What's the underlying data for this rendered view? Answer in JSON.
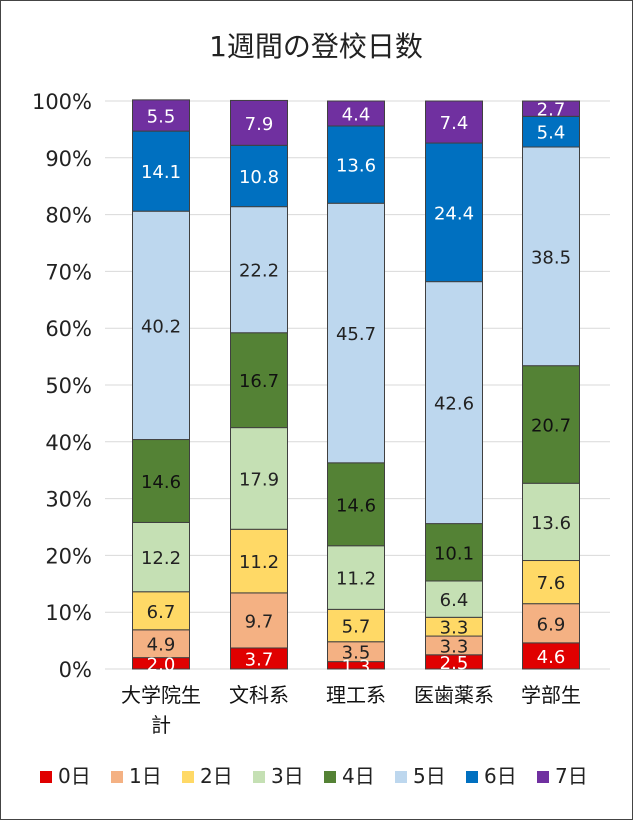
{
  "chart_data": {
    "type": "bar",
    "stacked": true,
    "percent": true,
    "title": "1週間の登校日数",
    "categories": [
      "大学院生計",
      "文科系",
      "理工系",
      "医歯薬系",
      "学部生"
    ],
    "category_lines": [
      [
        "大学院生",
        "計"
      ],
      [
        "文科系"
      ],
      [
        "理工系"
      ],
      [
        "医歯薬系"
      ],
      [
        "学部生"
      ]
    ],
    "ylim": [
      0,
      100
    ],
    "yticks": [
      0,
      10,
      20,
      30,
      40,
      50,
      60,
      70,
      80,
      90,
      100
    ],
    "ytick_labels": [
      "0%",
      "10%",
      "20%",
      "30%",
      "40%",
      "50%",
      "60%",
      "70%",
      "80%",
      "90%",
      "100%"
    ],
    "grid": true,
    "legend_position": "bottom",
    "series": [
      {
        "name": "0日",
        "color": "#e00000",
        "label_color": "#ffffff",
        "values": [
          2.0,
          3.7,
          1.3,
          2.5,
          4.6
        ]
      },
      {
        "name": "1日",
        "color": "#f4b183",
        "label_color": "#222222",
        "values": [
          4.9,
          9.7,
          3.5,
          3.3,
          6.9
        ]
      },
      {
        "name": "2日",
        "color": "#ffd966",
        "label_color": "#222222",
        "values": [
          6.7,
          11.2,
          5.7,
          3.3,
          7.6
        ]
      },
      {
        "name": "3日",
        "color": "#c5e0b4",
        "label_color": "#222222",
        "values": [
          12.2,
          17.9,
          11.2,
          6.4,
          13.6
        ]
      },
      {
        "name": "4日",
        "color": "#548235",
        "label_color": "#111111",
        "values": [
          14.6,
          16.7,
          14.6,
          10.1,
          20.7
        ]
      },
      {
        "name": "5日",
        "color": "#bdd7ee",
        "label_color": "#222222",
        "values": [
          40.2,
          22.2,
          45.7,
          42.6,
          38.5
        ]
      },
      {
        "name": "6日",
        "color": "#0070c0",
        "label_color": "#ffffff",
        "values": [
          14.1,
          10.8,
          13.6,
          24.4,
          5.4
        ]
      },
      {
        "name": "7日",
        "color": "#7030a0",
        "label_color": "#ffffff",
        "values": [
          5.5,
          7.9,
          4.4,
          7.4,
          2.7
        ]
      }
    ]
  }
}
